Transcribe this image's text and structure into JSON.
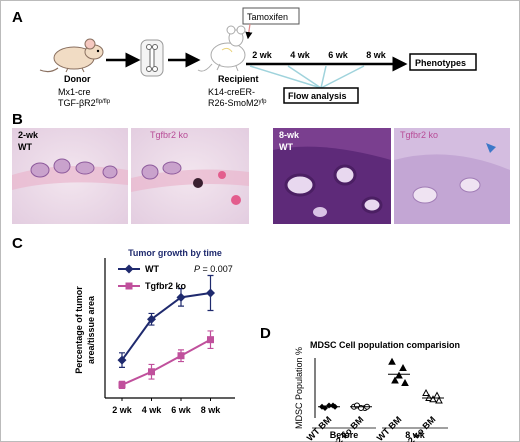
{
  "panel_a": {
    "letter": "A",
    "tamoxifen": "Tamoxifen",
    "timepoints": [
      "2 wk",
      "4 wk",
      "6 wk",
      "8 wk"
    ],
    "phenotypes": "Phenotypes",
    "flow": "Flow analysis",
    "donor": {
      "label": "Donor",
      "line1": "Mx1-cre",
      "line2": "TGF-βR2",
      "line2_sup": "flp/flp"
    },
    "recipient": {
      "label": "Recipient",
      "line1": "K14-creER-",
      "line2": "R26-SmoM2",
      "line2_sup": "yfp"
    }
  },
  "panel_b": {
    "letter": "B",
    "left": {
      "time": "2-wk",
      "wt": "WT",
      "ko": "Tgfbr2 ko"
    },
    "right": {
      "time": "8-wk",
      "wt": "WT",
      "ko": "Tgfbr2 ko"
    }
  },
  "chart_data": [
    {
      "type": "line",
      "letter": "C",
      "title": "Tumor growth by time",
      "ylabel": [
        "Percentage of tumor",
        "area/tissue area"
      ],
      "annotation": [
        "P",
        " = 0.007"
      ],
      "categories": [
        "2 wk",
        "4 wk",
        "6 wk",
        "8 wk"
      ],
      "ylim": [
        0,
        48
      ],
      "series": [
        {
          "name": "WT",
          "color": "#1f2a6e",
          "marker": "diamond",
          "values": [
            13,
            27,
            34.5,
            36
          ],
          "errors": [
            2.5,
            2,
            3,
            6
          ]
        },
        {
          "name": "Tgfbr2 ko",
          "color": "#c0509c",
          "marker": "square",
          "values": [
            4.5,
            9,
            14.5,
            20
          ],
          "errors": [
            1.2,
            2.5,
            2,
            3
          ]
        }
      ]
    },
    {
      "type": "scatter",
      "letter": "D",
      "title": "MDSC Cell population comparision",
      "ylabel": "MDSC Population %",
      "ylim": [
        0,
        48
      ],
      "series": [
        {
          "name": "WT BM",
          "marker": "diamond-filled",
          "values": [
            9,
            10,
            8,
            9,
            10
          ],
          "mean": 9
        },
        {
          "name": "Tgfbr2 ko BM",
          "marker": "circle-open",
          "values": [
            9,
            8,
            10,
            9,
            8
          ],
          "mean": 9
        },
        {
          "name": "WT BM",
          "marker": "triangle-filled",
          "values": [
            45,
            40,
            30,
            28,
            34
          ],
          "mean": 35
        },
        {
          "name": "Tgfbr2 ko BM",
          "marker": "triangle-open",
          "values": [
            20,
            18,
            16,
            14,
            15
          ],
          "mean": 16
        }
      ],
      "groups": [
        {
          "label": "Before",
          "members": [
            0,
            1
          ]
        },
        {
          "label": "8 wk",
          "members": [
            2,
            3
          ]
        }
      ]
    }
  ]
}
